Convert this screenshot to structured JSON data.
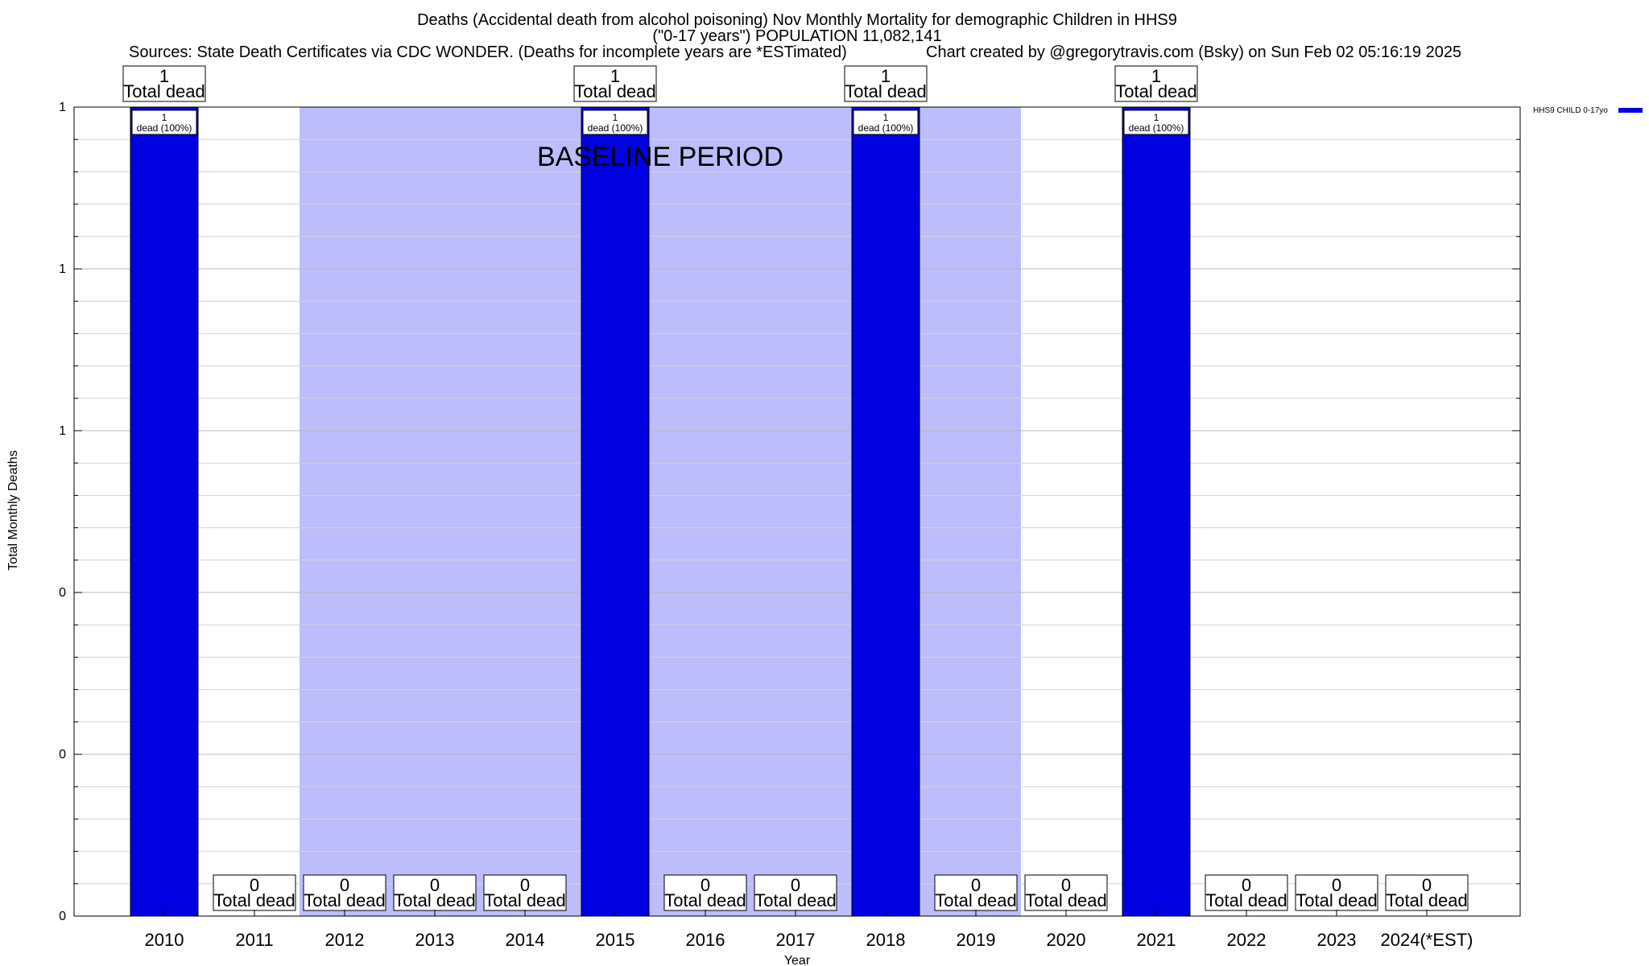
{
  "chart_data": {
    "type": "bar",
    "title_line1": "Deaths (Accidental death from alcohol poisoning) Nov Monthly Mortality for demographic Children in HHS9",
    "title_line2": "(\"0-17 years\") POPULATION 11,082,141",
    "sources": "Sources: State Death Certificates via CDC WONDER. (Deaths for incomplete years are *ESTimated)",
    "credit": "Chart created by @gregorytravis.com (Bsky) on Sun Feb 02 05:16:19 2025",
    "xlabel": "Year",
    "ylabel": "Total Monthly Deaths",
    "categories": [
      "2010",
      "2011",
      "2012",
      "2013",
      "2014",
      "2015",
      "2016",
      "2017",
      "2018",
      "2019",
      "2020",
      "2021",
      "2022",
      "2023",
      "2024(*EST)"
    ],
    "series": [
      {
        "name": "HHS9 CHILD 0-17yo",
        "color": "#0000e0",
        "values": [
          1,
          0,
          0,
          0,
          0,
          1,
          0,
          0,
          1,
          0,
          0,
          1,
          0,
          0,
          0
        ]
      }
    ],
    "ylim": [
      0,
      1
    ],
    "y_tick_labels": [
      "0",
      "0",
      "0",
      "1",
      "1",
      "1"
    ],
    "total_label_suffix": "Total dead",
    "bar_inner_labels": [
      "1",
      "dead (100%)"
    ],
    "baseline": {
      "label": "BASELINE PERIOD",
      "start": "2012",
      "end": "2019",
      "color": "#bdbdfb"
    },
    "legend_position": "top-right",
    "grid": true
  }
}
